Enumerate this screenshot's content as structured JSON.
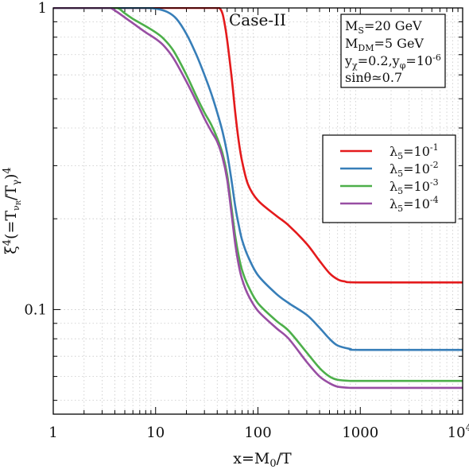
{
  "chart_data": {
    "type": "line",
    "xscale": "log",
    "yscale": "log",
    "xlim": [
      1,
      10000
    ],
    "ylim": [
      0.045,
      1
    ],
    "xlabel": "x=M₀/T",
    "ylabel": "ξ⁴(=T_νR/T_γ)⁴",
    "case_label": "Case-II",
    "info_box": [
      "M_S=20 GeV",
      "M_DM=5 GeV",
      "y_χ=0.2, y_φ=10⁻⁶",
      "sinθ≃0.7"
    ],
    "x_tick_labels": [
      "1",
      "10",
      "100",
      "1000",
      "10⁴"
    ],
    "y_tick_labels": [
      "1",
      "0.1"
    ],
    "legend_position": "right",
    "grid": true,
    "series": [
      {
        "name": "λ5=10⁻¹",
        "color": "#e41a1c",
        "points": [
          [
            1,
            1
          ],
          [
            10,
            1
          ],
          [
            30,
            1
          ],
          [
            42,
            1
          ],
          [
            48,
            0.86
          ],
          [
            55,
            0.6
          ],
          [
            60,
            0.45
          ],
          [
            65,
            0.36
          ],
          [
            70,
            0.31
          ],
          [
            80,
            0.26
          ],
          [
            100,
            0.23
          ],
          [
            150,
            0.205
          ],
          [
            200,
            0.19
          ],
          [
            300,
            0.165
          ],
          [
            400,
            0.145
          ],
          [
            500,
            0.132
          ],
          [
            600,
            0.126
          ],
          [
            700,
            0.124
          ],
          [
            1000,
            0.123
          ],
          [
            10000,
            0.123
          ]
        ]
      },
      {
        "name": "λ5=10⁻²",
        "color": "#377eb8",
        "points": [
          [
            1,
            1
          ],
          [
            5,
            1
          ],
          [
            8,
            1
          ],
          [
            10,
            0.995
          ],
          [
            13,
            0.97
          ],
          [
            16,
            0.92
          ],
          [
            20,
            0.82
          ],
          [
            25,
            0.7
          ],
          [
            30,
            0.6
          ],
          [
            35,
            0.52
          ],
          [
            40,
            0.45
          ],
          [
            45,
            0.39
          ],
          [
            50,
            0.33
          ],
          [
            55,
            0.27
          ],
          [
            60,
            0.22
          ],
          [
            65,
            0.19
          ],
          [
            70,
            0.17
          ],
          [
            80,
            0.15
          ],
          [
            100,
            0.13
          ],
          [
            150,
            0.113
          ],
          [
            200,
            0.105
          ],
          [
            300,
            0.096
          ],
          [
            400,
            0.087
          ],
          [
            500,
            0.08
          ],
          [
            600,
            0.076
          ],
          [
            800,
            0.074
          ],
          [
            1000,
            0.0735
          ],
          [
            10000,
            0.0735
          ]
        ]
      },
      {
        "name": "λ5=10⁻³",
        "color": "#4daf4a",
        "points": [
          [
            1,
            1
          ],
          [
            3,
            1
          ],
          [
            4.2,
            1
          ],
          [
            5,
            0.96
          ],
          [
            6,
            0.92
          ],
          [
            8,
            0.87
          ],
          [
            10,
            0.83
          ],
          [
            12,
            0.79
          ],
          [
            15,
            0.72
          ],
          [
            20,
            0.6
          ],
          [
            25,
            0.51
          ],
          [
            30,
            0.45
          ],
          [
            35,
            0.41
          ],
          [
            40,
            0.37
          ],
          [
            45,
            0.33
          ],
          [
            50,
            0.28
          ],
          [
            55,
            0.22
          ],
          [
            60,
            0.175
          ],
          [
            65,
            0.15
          ],
          [
            70,
            0.135
          ],
          [
            80,
            0.12
          ],
          [
            100,
            0.105
          ],
          [
            150,
            0.092
          ],
          [
            200,
            0.085
          ],
          [
            300,
            0.072
          ],
          [
            400,
            0.064
          ],
          [
            500,
            0.06
          ],
          [
            600,
            0.0585
          ],
          [
            800,
            0.058
          ],
          [
            1000,
            0.058
          ],
          [
            10000,
            0.058
          ]
        ]
      },
      {
        "name": "λ5=10⁻⁴",
        "color": "#984ea3",
        "points": [
          [
            1,
            1
          ],
          [
            3,
            1
          ],
          [
            3.6,
            1
          ],
          [
            4.2,
            0.97
          ],
          [
            5,
            0.93
          ],
          [
            6,
            0.89
          ],
          [
            8,
            0.83
          ],
          [
            10,
            0.79
          ],
          [
            12,
            0.75
          ],
          [
            15,
            0.68
          ],
          [
            20,
            0.57
          ],
          [
            25,
            0.49
          ],
          [
            30,
            0.43
          ],
          [
            35,
            0.39
          ],
          [
            40,
            0.36
          ],
          [
            45,
            0.32
          ],
          [
            50,
            0.27
          ],
          [
            55,
            0.21
          ],
          [
            60,
            0.165
          ],
          [
            65,
            0.14
          ],
          [
            70,
            0.126
          ],
          [
            80,
            0.112
          ],
          [
            100,
            0.099
          ],
          [
            150,
            0.087
          ],
          [
            200,
            0.08
          ],
          [
            300,
            0.067
          ],
          [
            400,
            0.06
          ],
          [
            500,
            0.057
          ],
          [
            600,
            0.0555
          ],
          [
            800,
            0.055
          ],
          [
            1000,
            0.055
          ],
          [
            10000,
            0.055
          ]
        ]
      }
    ]
  }
}
